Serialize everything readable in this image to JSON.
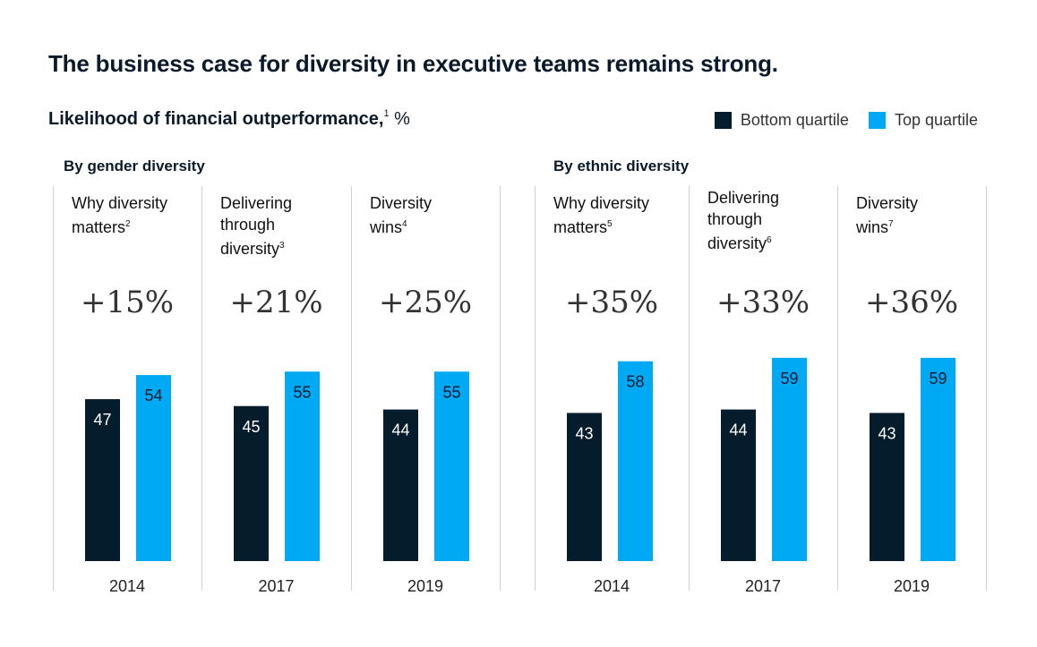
{
  "title": "The business case for diversity in executive teams remains strong.",
  "subtitle": "Likelihood of financial outperformance,",
  "subtitle_note": "1",
  "subtitle_unit": "%",
  "legend": [
    {
      "label": "Bottom quartile",
      "color": "#051c2c"
    },
    {
      "label": "Top quartile",
      "color": "#00a9f4"
    }
  ],
  "groups": [
    {
      "title": "By gender diversity"
    },
    {
      "title": "By ethnic diversity"
    }
  ],
  "chart_data": {
    "type": "bar",
    "ylim": [
      0,
      65
    ],
    "series_names": [
      "Bottom quartile",
      "Top quartile"
    ],
    "panels": [
      {
        "group": "By gender diversity",
        "label_lines": [
          "Why diversity",
          "matters"
        ],
        "note": "2",
        "year": "2014",
        "diff": "+15%",
        "values": [
          47,
          54
        ]
      },
      {
        "group": "By gender diversity",
        "label_lines": [
          "Delivering",
          "through",
          "diversity"
        ],
        "note": "3",
        "year": "2017",
        "diff": "+21%",
        "values": [
          45,
          55
        ]
      },
      {
        "group": "By gender diversity",
        "label_lines": [
          "Diversity",
          "wins"
        ],
        "note": "4",
        "year": "2019",
        "diff": "+25%",
        "values": [
          44,
          55
        ]
      },
      {
        "group": "By ethnic diversity",
        "label_lines": [
          "Why diversity",
          "matters"
        ],
        "note": "5",
        "year": "2014",
        "diff": "+35%",
        "values": [
          43,
          58
        ]
      },
      {
        "group": "By ethnic diversity",
        "label_lines": [
          "Delivering",
          "through",
          "diversity"
        ],
        "note": "6",
        "year": "2017",
        "diff": "+33%",
        "values": [
          44,
          59
        ]
      },
      {
        "group": "By ethnic diversity",
        "label_lines": [
          "Diversity",
          "wins"
        ],
        "note": "7",
        "year": "2019",
        "diff": "+36%",
        "values": [
          43,
          59
        ]
      }
    ]
  }
}
